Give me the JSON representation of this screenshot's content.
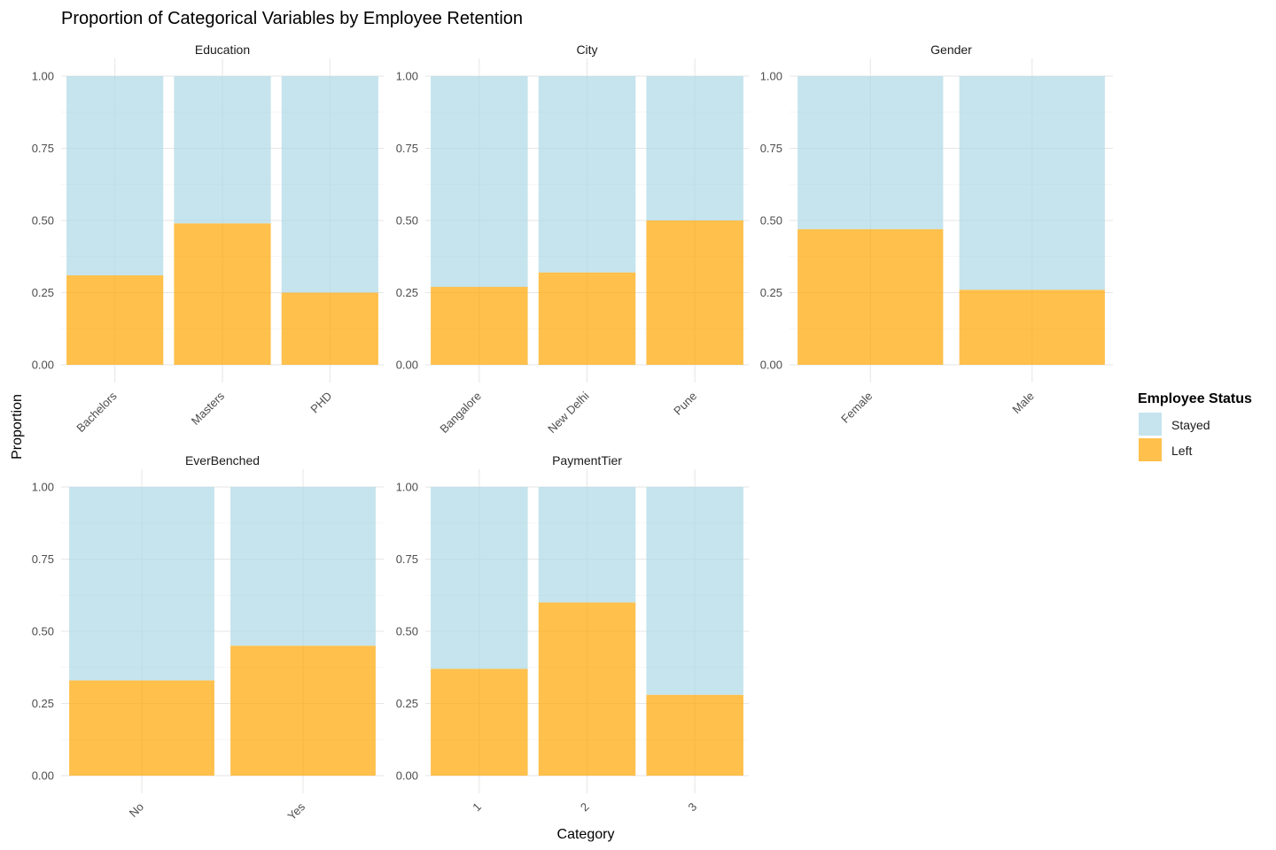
{
  "chart_data": {
    "type": "bar",
    "stacking": "fill",
    "title": "Proportion of Categorical Variables by Employee Retention",
    "xlabel": "Category",
    "ylabel": "Proportion",
    "ylim": [
      0,
      1
    ],
    "yticks": [
      "0.00",
      "0.25",
      "0.50",
      "0.75",
      "1.00"
    ],
    "grid": true,
    "legend": {
      "title": "Employee Status",
      "position": "right",
      "entries": [
        {
          "name": "Stayed",
          "color": "#add8e6"
        },
        {
          "name": "Left",
          "color": "#ffa500"
        }
      ]
    },
    "facets": [
      {
        "name": "Education",
        "categories": [
          "Bachelors",
          "Masters",
          "PHD"
        ],
        "series": [
          {
            "name": "Left",
            "values": [
              0.31,
              0.49,
              0.25
            ]
          },
          {
            "name": "Stayed",
            "values": [
              0.69,
              0.51,
              0.75
            ]
          }
        ]
      },
      {
        "name": "City",
        "categories": [
          "Bangalore",
          "New Delhi",
          "Pune"
        ],
        "series": [
          {
            "name": "Left",
            "values": [
              0.27,
              0.32,
              0.5
            ]
          },
          {
            "name": "Stayed",
            "values": [
              0.73,
              0.68,
              0.5
            ]
          }
        ]
      },
      {
        "name": "Gender",
        "categories": [
          "Female",
          "Male"
        ],
        "series": [
          {
            "name": "Left",
            "values": [
              0.47,
              0.26
            ]
          },
          {
            "name": "Stayed",
            "values": [
              0.53,
              0.74
            ]
          }
        ]
      },
      {
        "name": "EverBenched",
        "categories": [
          "No",
          "Yes"
        ],
        "series": [
          {
            "name": "Left",
            "values": [
              0.33,
              0.45
            ]
          },
          {
            "name": "Stayed",
            "values": [
              0.67,
              0.55
            ]
          }
        ]
      },
      {
        "name": "PaymentTier",
        "categories": [
          "1",
          "2",
          "3"
        ],
        "series": [
          {
            "name": "Left",
            "values": [
              0.37,
              0.6,
              0.28
            ]
          },
          {
            "name": "Stayed",
            "values": [
              0.63,
              0.4,
              0.72
            ]
          }
        ]
      }
    ]
  }
}
